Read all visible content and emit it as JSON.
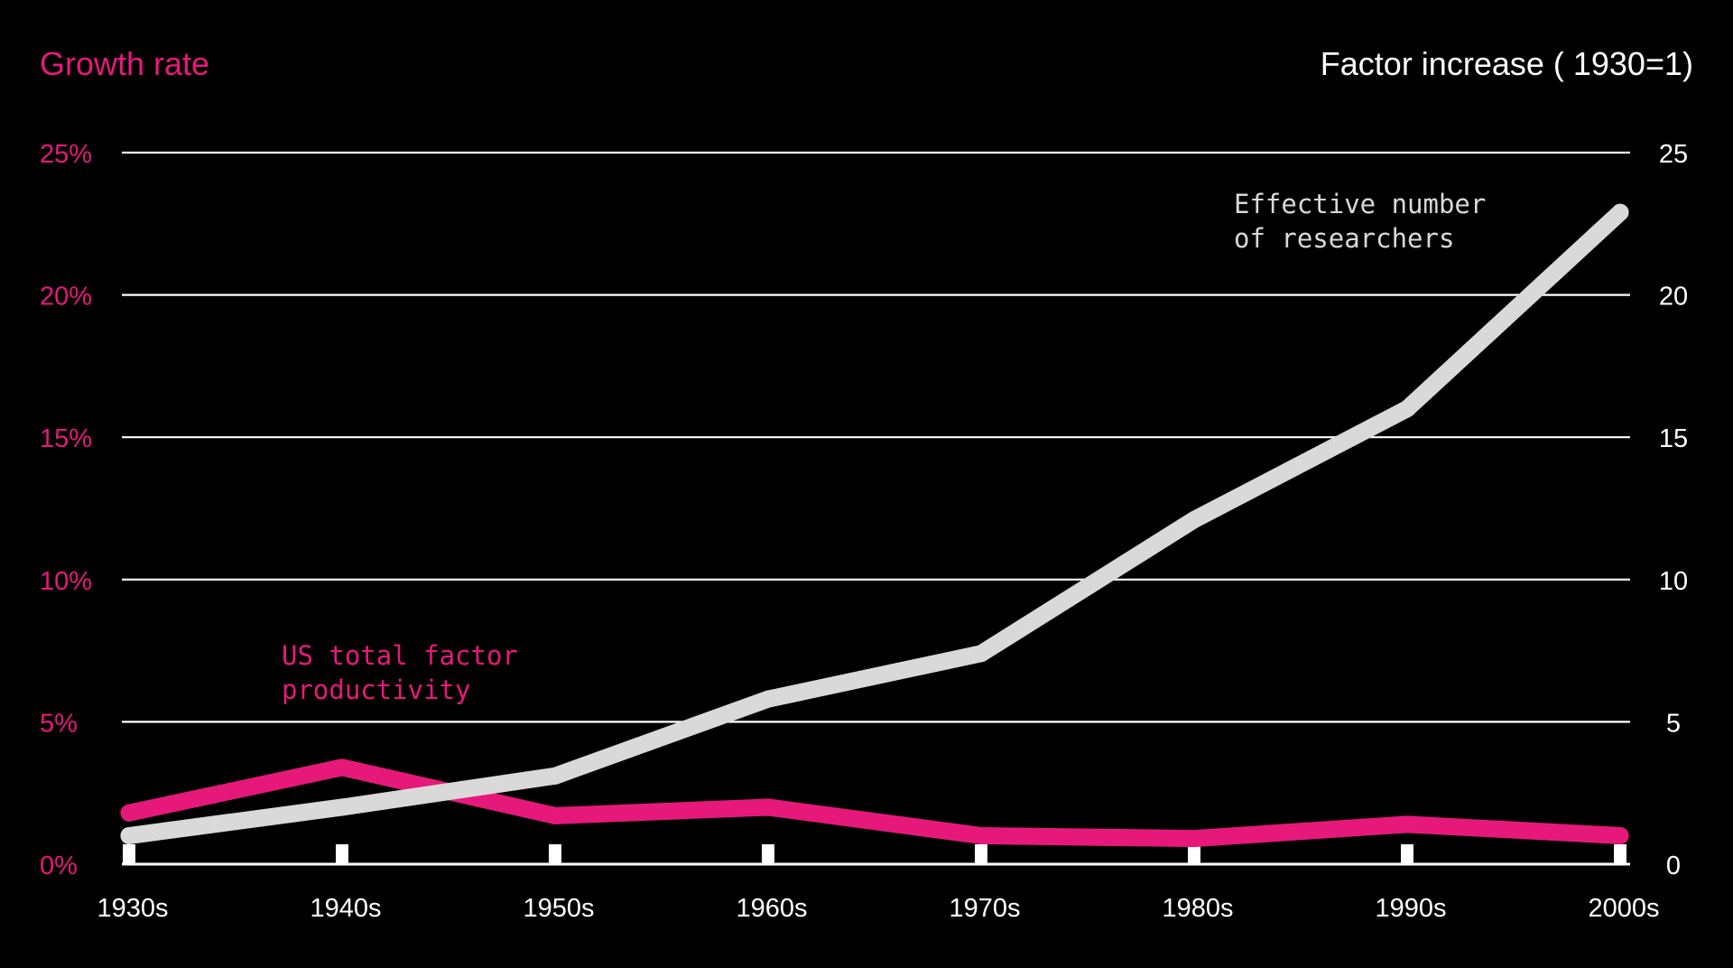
{
  "chart_data": {
    "type": "line",
    "title_left": "Growth rate",
    "title_right": "Factor increase ( 1930=1)",
    "categories": [
      "1930s",
      "1940s",
      "1950s",
      "1960s",
      "1970s",
      "1980s",
      "1990s",
      "2000s"
    ],
    "y_left": {
      "label": "Growth rate",
      "range": [
        0,
        25
      ],
      "ticks": [
        0,
        5,
        10,
        15,
        20,
        25
      ],
      "tick_labels": [
        "0%",
        "5%",
        "10%",
        "15%",
        "20%",
        "25%"
      ]
    },
    "y_right": {
      "label": "Factor increase ( 1930=1)",
      "range": [
        0,
        25
      ],
      "ticks": [
        0,
        5,
        10,
        15,
        20,
        25
      ],
      "tick_labels": [
        "0",
        "5",
        "10",
        "15",
        "20",
        "25"
      ]
    },
    "grid": true,
    "series": [
      {
        "name": "US total factor productivity",
        "label_lines": [
          "US total factor",
          "productivity"
        ],
        "axis": "left",
        "color": "#e6197a",
        "values": [
          1.8,
          3.4,
          1.7,
          2.0,
          1.0,
          0.9,
          1.4,
          1.0
        ]
      },
      {
        "name": "Effective number of researchers",
        "label_lines": [
          "Effective number",
          "of researchers"
        ],
        "axis": "right",
        "color": "#d9d9d9",
        "values": [
          1.0,
          2.0,
          3.1,
          5.8,
          7.4,
          12.1,
          16.0,
          22.9
        ]
      }
    ]
  },
  "colors": {
    "background": "#000000",
    "accent": "#e6197a",
    "neutral": "#d9d9d9",
    "grid": "#ffffff"
  }
}
